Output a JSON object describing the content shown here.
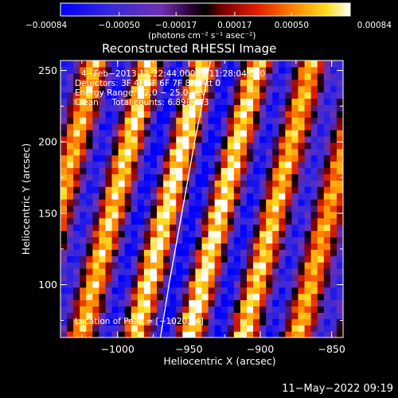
{
  "chart_data": {
    "type": "heatmap",
    "title": "Reconstructed RHESSI Image",
    "xlabel": "Heliocentric X (arcsec)",
    "ylabel": "Heliocentric Y (arcsec)",
    "xlim": [
      -1040,
      -842
    ],
    "ylim": [
      63,
      257
    ],
    "xticks": [
      -1000,
      -950,
      -900,
      -850
    ],
    "yticks": [
      100,
      150,
      200,
      250
    ],
    "xtick_labels": [
      "−1000",
      "−950",
      "−900",
      "−850"
    ],
    "ytick_labels": [
      "100",
      "150",
      "200",
      "250"
    ],
    "colorbar": {
      "min": -0.00084,
      "max": 0.00084,
      "ticks": [
        -0.00084,
        -0.0005,
        -0.00017,
        0.00017,
        0.0005,
        0.00084
      ],
      "tick_labels": [
        "−0.00084",
        "−0.00050",
        "−0.00017",
        "0.00017",
        "0.00050",
        "0.00084"
      ],
      "unit_label": "(photons cm⁻² s⁻¹ asec⁻²)"
    },
    "annotations": {
      "time_range": "4−Feb−2013 11:22:44.000 to 11:28:04.000",
      "detectors": "Detectors: 3F 4F 5F 6F 7F 8F, Att 0",
      "energy": "Energy Range: 12.0 − 25.0 keV",
      "clean": "Clean     Total counts: 6.89E+03",
      "peak": "Location of Peak = [−1020,74]"
    },
    "limb": [
      [
        -970,
        63
      ],
      [
        -964,
        100
      ],
      [
        -955,
        150
      ],
      [
        -946,
        200
      ],
      [
        -940,
        230
      ],
      [
        -935,
        257
      ]
    ],
    "stripes": {
      "period_arcsec": 38,
      "slope_x_per_y": 0.25
    },
    "peak": [
      -1020,
      74
    ],
    "colors": {
      "limb": "#ffffff",
      "axes": "#ffffff",
      "background": "#000000"
    }
  },
  "footer": {
    "date": "11−May−2022 09:19"
  }
}
